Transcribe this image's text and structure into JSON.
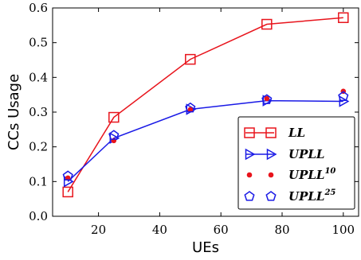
{
  "chart_data": {
    "type": "line",
    "xlabel": "UEs",
    "ylabel": "CCs Usage",
    "xlim": [
      5,
      105
    ],
    "ylim": [
      0.0,
      0.6
    ],
    "xticks": [
      20,
      40,
      60,
      80,
      100
    ],
    "yticks": [
      0.0,
      0.1,
      0.2,
      0.3,
      0.4,
      0.5,
      0.6
    ],
    "grid": false,
    "legend_position": "lower-right",
    "series": [
      {
        "name": "LL",
        "marker": "square",
        "color": "#e8141c",
        "line": true,
        "x": [
          10,
          25,
          50,
          75,
          100
        ],
        "y": [
          0.07,
          0.285,
          0.452,
          0.553,
          0.572
        ]
      },
      {
        "name": "UPLL",
        "marker": "triangle-right",
        "color": "#1a1ae6",
        "line": true,
        "x": [
          10,
          25,
          50,
          75,
          100
        ],
        "y": [
          0.1,
          0.225,
          0.308,
          0.333,
          0.331
        ]
      },
      {
        "name": "UPLL",
        "sup": "10",
        "marker": "dot",
        "color": "#e8141c",
        "line": false,
        "x": [
          10,
          25,
          50,
          75,
          100
        ],
        "y": [
          0.11,
          0.218,
          0.307,
          0.339,
          0.36
        ]
      },
      {
        "name": "UPLL",
        "sup": "25",
        "marker": "pentagon",
        "color": "#1a1ae6",
        "line": false,
        "x": [
          10,
          25,
          50,
          75,
          100
        ],
        "y": [
          0.116,
          0.233,
          0.312,
          0.336,
          0.345
        ]
      }
    ]
  }
}
